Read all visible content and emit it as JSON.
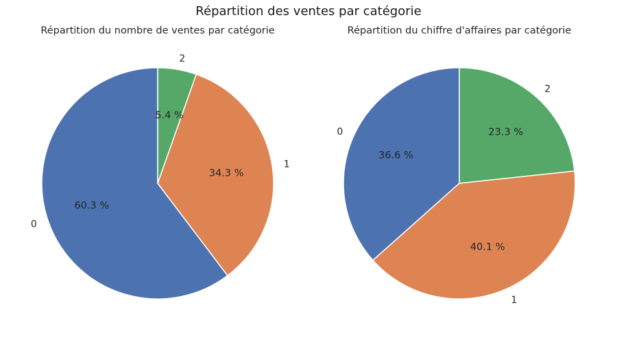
{
  "figure": {
    "title": "Répartition des ventes par catégorie"
  },
  "chart_data": [
    {
      "type": "pie",
      "title": "Répartition du nombre de ventes par catégorie",
      "categories": [
        "0",
        "1",
        "2"
      ],
      "values": [
        60.3,
        34.3,
        5.4
      ],
      "value_labels": [
        "60.3 %",
        "34.3 %",
        "5.4 %"
      ],
      "colors": [
        "#4c72b0",
        "#dd8452",
        "#55a868"
      ],
      "start_angle_deg": 90,
      "direction": "counterclockwise",
      "legend": "none"
    },
    {
      "type": "pie",
      "title": "Répartition du chiffre d'affaires par catégorie",
      "categories": [
        "0",
        "1",
        "2"
      ],
      "values": [
        36.6,
        40.1,
        23.3
      ],
      "value_labels": [
        "36.6 %",
        "40.1 %",
        "23.3 %"
      ],
      "colors": [
        "#4c72b0",
        "#dd8452",
        "#55a868"
      ],
      "start_angle_deg": 90,
      "direction": "counterclockwise",
      "legend": "none"
    }
  ]
}
